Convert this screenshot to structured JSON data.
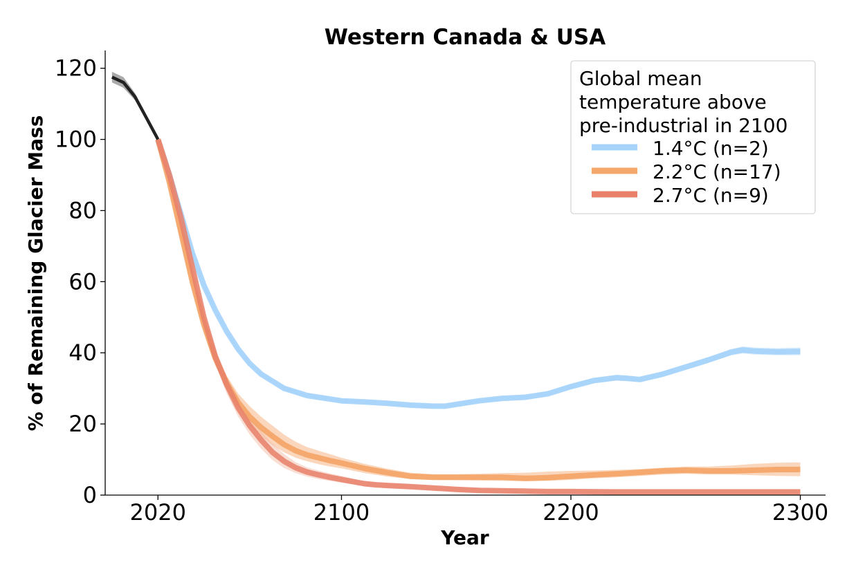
{
  "chart_data": {
    "type": "line",
    "title": "Western Canada & USA",
    "xlabel": "Year",
    "ylabel": "% of Remaining Glacier Mass",
    "xlim": [
      1997,
      2311
    ],
    "ylim": [
      0,
      125
    ],
    "xticks": [
      2020,
      2100,
      2200,
      2300
    ],
    "yticks": [
      0,
      20,
      40,
      60,
      80,
      100,
      120
    ],
    "legend": {
      "title": "Global mean temperature above pre-industrial in 2100",
      "title_lines": [
        "Global mean",
        "temperature above",
        "pre-industrial in 2100"
      ],
      "position": "top-right",
      "entries": [
        "1.4°C (n=2)",
        "2.2°C (n=17)",
        "2.7°C (n=9)"
      ]
    },
    "historical": {
      "name": "historical",
      "color": "#222222",
      "x": [
        2000,
        2005,
        2010,
        2015,
        2020
      ],
      "values": [
        117.5,
        116,
        112,
        106,
        100
      ],
      "lower": [
        116,
        114.5,
        111,
        105.5,
        100
      ],
      "upper": [
        119,
        117.5,
        113,
        106.5,
        100
      ]
    },
    "series": [
      {
        "name": "1.4°C (n=2)",
        "color": "#a8d4fb",
        "band_color": "#a8d4fb",
        "x": [
          2020,
          2025,
          2030,
          2035,
          2040,
          2045,
          2050,
          2055,
          2060,
          2065,
          2070,
          2075,
          2080,
          2085,
          2090,
          2095,
          2100,
          2110,
          2120,
          2130,
          2140,
          2145,
          2150,
          2160,
          2170,
          2180,
          2190,
          2200,
          2210,
          2220,
          2225,
          2230,
          2240,
          2250,
          2260,
          2270,
          2275,
          2280,
          2290,
          2300
        ],
        "values": [
          100,
          90,
          79,
          68,
          59,
          52,
          46,
          41,
          37,
          34,
          32,
          30,
          29,
          28,
          27.5,
          27,
          26.5,
          26.2,
          25.8,
          25.3,
          25.0,
          25.0,
          25.5,
          26.5,
          27.2,
          27.5,
          28.5,
          30.5,
          32.2,
          33.0,
          32.8,
          32.5,
          34.0,
          36.0,
          38.0,
          40.2,
          40.8,
          40.5,
          40.3,
          40.4
        ],
        "lower": [
          100,
          89.5,
          78.5,
          67.5,
          58.5,
          51.5,
          45.5,
          40.5,
          36.5,
          33.5,
          31.5,
          29.5,
          28.5,
          27.5,
          27,
          26.5,
          26,
          25.7,
          25.3,
          24.8,
          24.5,
          24.5,
          25,
          26,
          26.7,
          27,
          28,
          29.8,
          31.5,
          32.2,
          32,
          31.8,
          33.2,
          35.2,
          37.2,
          39.3,
          39.8,
          39.5,
          39.3,
          39.3
        ],
        "upper": [
          100,
          90.5,
          79.5,
          68.5,
          59.5,
          52.5,
          46.5,
          41.5,
          37.5,
          34.5,
          32.5,
          30.5,
          29.5,
          28.5,
          28,
          27.5,
          27,
          26.7,
          26.3,
          25.8,
          25.5,
          25.5,
          26,
          27,
          27.7,
          28,
          29,
          31.2,
          32.9,
          33.8,
          33.6,
          33.2,
          34.8,
          36.8,
          38.8,
          41.1,
          41.8,
          41.5,
          41.3,
          41.5
        ]
      },
      {
        "name": "2.2°C (n=17)",
        "color": "#f4a76a",
        "band_color": "#f4a76a",
        "x": [
          2020,
          2025,
          2030,
          2035,
          2040,
          2045,
          2050,
          2055,
          2060,
          2065,
          2070,
          2075,
          2080,
          2085,
          2090,
          2095,
          2100,
          2110,
          2120,
          2130,
          2140,
          2150,
          2160,
          2170,
          2180,
          2190,
          2200,
          2210,
          2220,
          2230,
          2240,
          2250,
          2260,
          2270,
          2280,
          2290,
          2300
        ],
        "values": [
          100,
          88,
          74,
          60,
          48,
          38.5,
          31.5,
          26,
          22,
          19,
          16.5,
          14.2,
          12.5,
          11.3,
          10.5,
          9.7,
          9,
          7.5,
          6.3,
          5.3,
          5.0,
          5.0,
          5.0,
          5.0,
          4.7,
          4.9,
          5.3,
          5.7,
          6.0,
          6.4,
          6.8,
          7.0,
          6.8,
          6.8,
          7.0,
          7.2,
          7.2
        ],
        "lower": [
          100,
          86.5,
          72,
          58,
          46,
          36.5,
          29.5,
          23.5,
          19.5,
          16.5,
          14,
          12,
          10.5,
          9.5,
          8.7,
          8,
          7.5,
          6.2,
          5.2,
          4.5,
          4.3,
          4.2,
          4.1,
          4.0,
          3.9,
          4.0,
          4.3,
          4.7,
          5.0,
          5.4,
          5.8,
          6.0,
          5.8,
          5.8,
          5.6,
          5.4,
          5.3
        ],
        "upper": [
          100,
          89.5,
          76,
          62,
          50,
          40.5,
          33.5,
          28.5,
          25,
          22,
          19.5,
          17,
          15,
          13.5,
          12.5,
          11.5,
          10.5,
          8.8,
          7.4,
          6.3,
          5.9,
          5.9,
          6.0,
          6.2,
          6.3,
          6.6,
          6.8,
          6.9,
          7.1,
          7.3,
          7.7,
          8.0,
          8.0,
          8.3,
          8.8,
          9.1,
          9.2
        ]
      },
      {
        "name": "2.7°C (n=9)",
        "color": "#e8806a",
        "band_color": "#f2b6a0",
        "x": [
          2020,
          2025,
          2030,
          2035,
          2040,
          2045,
          2050,
          2055,
          2060,
          2065,
          2070,
          2075,
          2080,
          2085,
          2090,
          2095,
          2100,
          2105,
          2110,
          2115,
          2120,
          2130,
          2140,
          2150,
          2160,
          2170,
          2180,
          2190,
          2200,
          2220,
          2240,
          2260,
          2280,
          2300
        ],
        "values": [
          100,
          90,
          78,
          64,
          50,
          39,
          31,
          24.5,
          19.5,
          15.5,
          12,
          9.5,
          7.7,
          6.5,
          5.7,
          5.0,
          4.4,
          3.8,
          3.2,
          2.9,
          2.7,
          2.4,
          2.0,
          1.6,
          1.3,
          1.2,
          1.1,
          1.0,
          1.0,
          0.9,
          0.9,
          0.9,
          0.9,
          0.9
        ],
        "lower": [
          100,
          89,
          76.5,
          62,
          48,
          37,
          28.5,
          22,
          17,
          13,
          9.8,
          7.6,
          6.2,
          5.2,
          4.5,
          4.0,
          3.5,
          3.0,
          2.5,
          2.2,
          2.0,
          1.8,
          1.4,
          1.0,
          0.7,
          0.6,
          0.5,
          0.4,
          0.4,
          0.3,
          0.3,
          0.3,
          0.3,
          0.3
        ],
        "upper": [
          100,
          91,
          79.5,
          66,
          52,
          41,
          33.5,
          27,
          22,
          18,
          14.5,
          11.5,
          9.3,
          7.8,
          6.9,
          6.1,
          5.4,
          4.6,
          3.9,
          3.6,
          3.4,
          3.0,
          2.6,
          2.2,
          1.9,
          1.8,
          1.7,
          1.6,
          1.6,
          1.5,
          1.5,
          1.5,
          1.5,
          1.5
        ]
      }
    ]
  }
}
